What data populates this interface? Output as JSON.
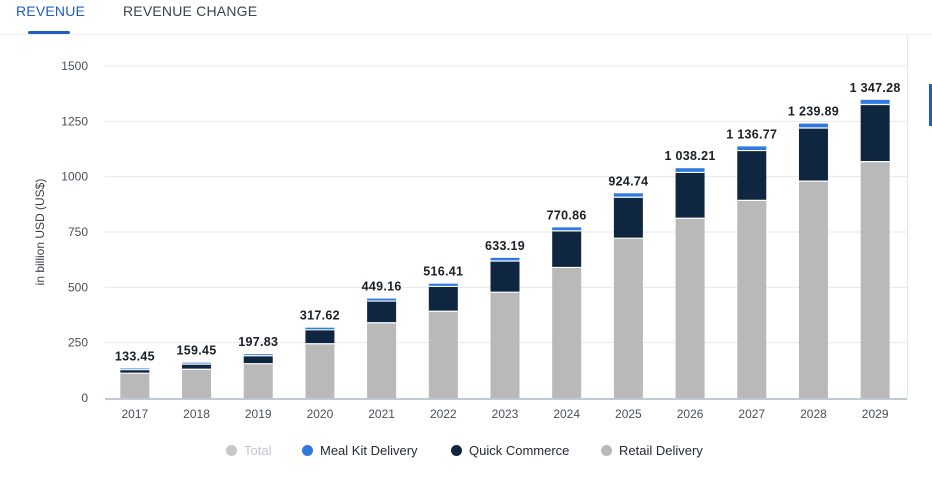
{
  "tabs": [
    {
      "label": "REVENUE",
      "active": true
    },
    {
      "label": "REVENUE CHANGE",
      "active": false
    }
  ],
  "chart_data": {
    "type": "bar",
    "stacked": true,
    "title": "",
    "xlabel": "",
    "ylabel": "in billion USD (US$)",
    "ylim": [
      0,
      1500
    ],
    "yticks": [
      "0",
      "250",
      "500",
      "750",
      "1000",
      "1250",
      "1500"
    ],
    "ytick_values": [
      0,
      250,
      500,
      750,
      1000,
      1250,
      1500
    ],
    "categories": [
      "2017",
      "2018",
      "2019",
      "2020",
      "2021",
      "2022",
      "2023",
      "2024",
      "2025",
      "2026",
      "2027",
      "2028",
      "2029"
    ],
    "totals": [
      133.45,
      159.45,
      197.83,
      317.62,
      449.16,
      516.41,
      633.19,
      770.86,
      924.74,
      1038.21,
      1136.77,
      1239.89,
      1347.28
    ],
    "total_labels": [
      "133.45",
      "159.45",
      "197.83",
      "317.62",
      "449.16",
      "516.41",
      "633.19",
      "770.86",
      "924.74",
      "1 038.21",
      "1 136.77",
      "1 239.89",
      "1 347.28"
    ],
    "series": [
      {
        "name": "Retail Delivery",
        "color": "#b9b9b9",
        "values": [
          112,
          130,
          155,
          245,
          340,
          392,
          478,
          590,
          722,
          812,
          893,
          980,
          1068
        ]
      },
      {
        "name": "Quick Commerce",
        "color": "#0f2640",
        "values": [
          16,
          23,
          36,
          63,
          98,
          112,
          141,
          165,
          185,
          207,
          225,
          240,
          258
        ]
      },
      {
        "name": "Meal Kit Delivery",
        "color": "#2f7ae0",
        "values": [
          5.45,
          6.45,
          6.83,
          9.62,
          11.16,
          12.41,
          14.19,
          15.86,
          17.74,
          19.21,
          18.77,
          19.89,
          21.28
        ]
      }
    ],
    "grid": true,
    "legend_position": "bottom"
  },
  "legend": [
    {
      "label": "Total",
      "color": "#c8c8c8",
      "muted": true
    },
    {
      "label": "Meal Kit Delivery",
      "color": "#2f7ae0",
      "muted": false
    },
    {
      "label": "Quick Commerce",
      "color": "#0f2640",
      "muted": false
    },
    {
      "label": "Retail Delivery",
      "color": "#b9b9b9",
      "muted": false
    }
  ]
}
